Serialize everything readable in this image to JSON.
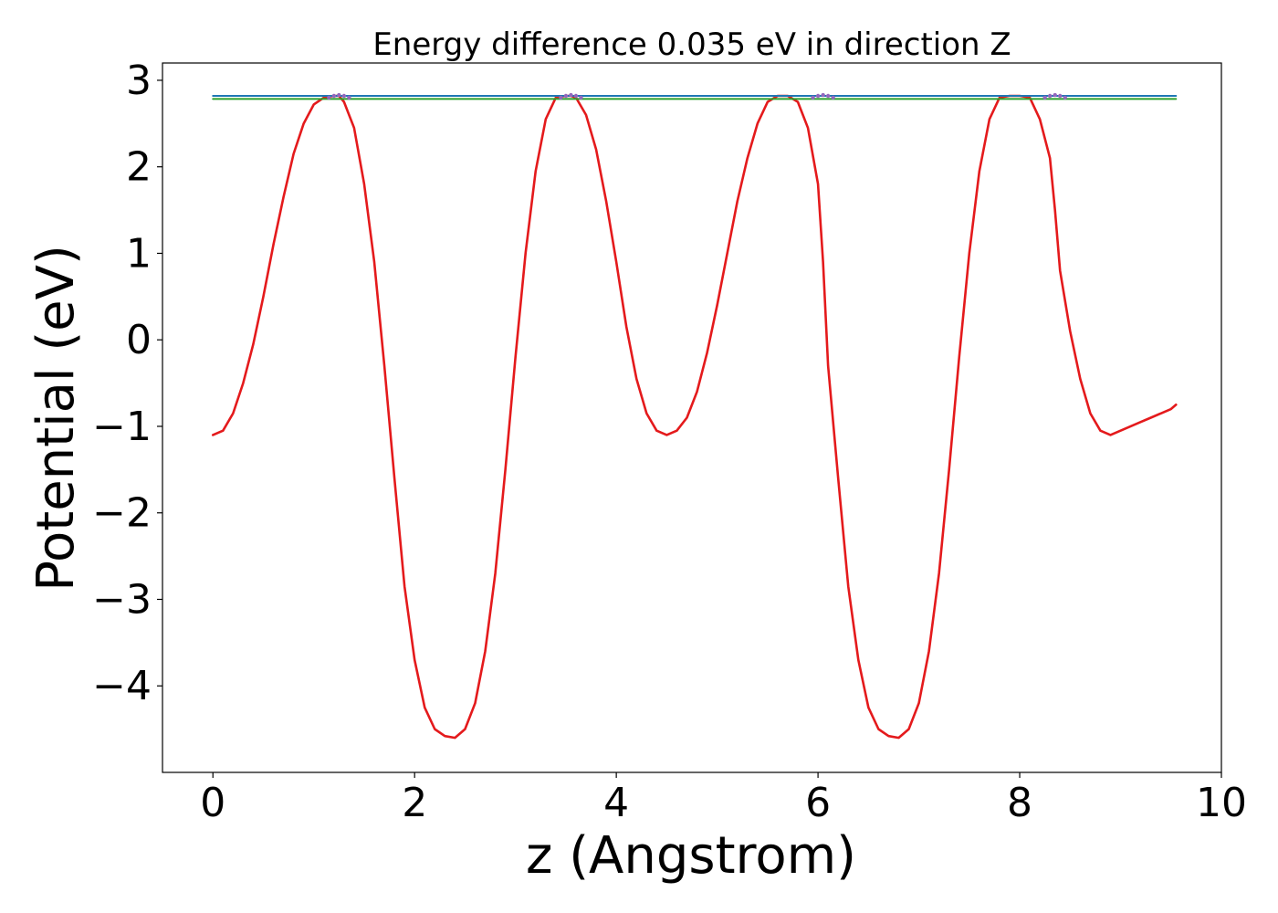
{
  "chart_data": {
    "type": "line",
    "title": "Energy difference 0.035 eV in direction Z",
    "xlabel": "z (Angstrom)",
    "ylabel": "Potential (eV)",
    "xlim": [
      -0.5,
      10.0
    ],
    "ylim": [
      -5.0,
      3.2
    ],
    "grid": false,
    "x_ticks": [
      0,
      2,
      4,
      6,
      8,
      10
    ],
    "y_ticks": [
      -4,
      -3,
      -2,
      -1,
      0,
      1,
      2,
      3
    ],
    "x_tick_labels": [
      "0",
      "2",
      "4",
      "6",
      "8",
      "10"
    ],
    "y_tick_labels": [
      "−4",
      "−3",
      "−2",
      "−1",
      "0",
      "1",
      "2",
      "3"
    ],
    "series": [
      {
        "color": "#e41a1c",
        "x": [
          0.0,
          0.1,
          0.2,
          0.3,
          0.4,
          0.5,
          0.6,
          0.7,
          0.8,
          0.9,
          1.0,
          1.1,
          1.2,
          1.25,
          1.3,
          1.4,
          1.5,
          1.6,
          1.7,
          1.8,
          1.9,
          2.0,
          2.1,
          2.2,
          2.3,
          2.4,
          2.5,
          2.6,
          2.7,
          2.8,
          2.9,
          3.0,
          3.1,
          3.2,
          3.3,
          3.4,
          3.5,
          3.55,
          3.6,
          3.7,
          3.8,
          3.9,
          4.0,
          4.1,
          4.2,
          4.3,
          4.4,
          4.5,
          4.6,
          4.7,
          4.8,
          4.9,
          5.0,
          5.1,
          5.2,
          5.3,
          5.4,
          5.5,
          5.6,
          5.7,
          5.8,
          5.9,
          6.0,
          6.05,
          6.1,
          6.2,
          6.3,
          6.4,
          6.5,
          6.6,
          6.7,
          6.8,
          6.9,
          7.0,
          7.1,
          7.2,
          7.3,
          7.4,
          7.5,
          7.6,
          7.7,
          7.8,
          7.9,
          8.0,
          8.1,
          8.2,
          8.3,
          8.35,
          8.4,
          8.5,
          8.6,
          8.7,
          8.8,
          8.9,
          9.0,
          9.1,
          9.2,
          9.3,
          9.4,
          9.5,
          9.55
        ],
        "y": [
          -1.1,
          -1.05,
          -0.85,
          -0.5,
          -0.05,
          0.5,
          1.1,
          1.65,
          2.15,
          2.5,
          2.72,
          2.8,
          2.82,
          2.82,
          2.75,
          2.45,
          1.8,
          0.9,
          -0.3,
          -1.6,
          -2.85,
          -3.7,
          -4.25,
          -4.5,
          -4.58,
          -4.6,
          -4.5,
          -4.2,
          -3.6,
          -2.7,
          -1.5,
          -0.2,
          1.0,
          1.95,
          2.55,
          2.8,
          2.82,
          2.82,
          2.8,
          2.6,
          2.2,
          1.6,
          0.9,
          0.15,
          -0.45,
          -0.85,
          -1.05,
          -1.1,
          -1.05,
          -0.9,
          -0.6,
          -0.15,
          0.4,
          1.0,
          1.6,
          2.1,
          2.5,
          2.75,
          2.82,
          2.82,
          2.75,
          2.45,
          1.8,
          0.9,
          -0.3,
          -1.6,
          -2.85,
          -3.7,
          -4.25,
          -4.5,
          -4.58,
          -4.6,
          -4.5,
          -4.2,
          -3.6,
          -2.7,
          -1.5,
          -0.2,
          1.0,
          1.95,
          2.55,
          2.8,
          2.82,
          2.82,
          2.8,
          2.55,
          2.1,
          1.5,
          0.8,
          0.1,
          -0.45,
          -0.85,
          -1.05,
          -1.1,
          -1.05,
          -1.0,
          -0.95,
          -0.9,
          -0.85,
          -0.8,
          -0.75
        ]
      },
      {
        "color": "#1f77b4",
        "x": [
          0.0,
          9.55
        ],
        "y": [
          2.82,
          2.82
        ]
      },
      {
        "color": "#2ca02c",
        "x": [
          0.0,
          9.55
        ],
        "y": [
          2.785,
          2.785
        ]
      },
      {
        "color": "#9467bd",
        "x": [
          1.15,
          1.2,
          1.25,
          1.3,
          1.35,
          3.45,
          3.5,
          3.55,
          3.6,
          3.65,
          5.95,
          6.0,
          6.05,
          6.1,
          6.15,
          8.25,
          8.3,
          8.35,
          8.4,
          8.45
        ],
        "y": [
          2.8,
          2.82,
          2.83,
          2.82,
          2.8,
          2.8,
          2.82,
          2.83,
          2.82,
          2.8,
          2.8,
          2.82,
          2.83,
          2.82,
          2.8,
          2.8,
          2.82,
          2.83,
          2.82,
          2.8
        ]
      }
    ]
  }
}
